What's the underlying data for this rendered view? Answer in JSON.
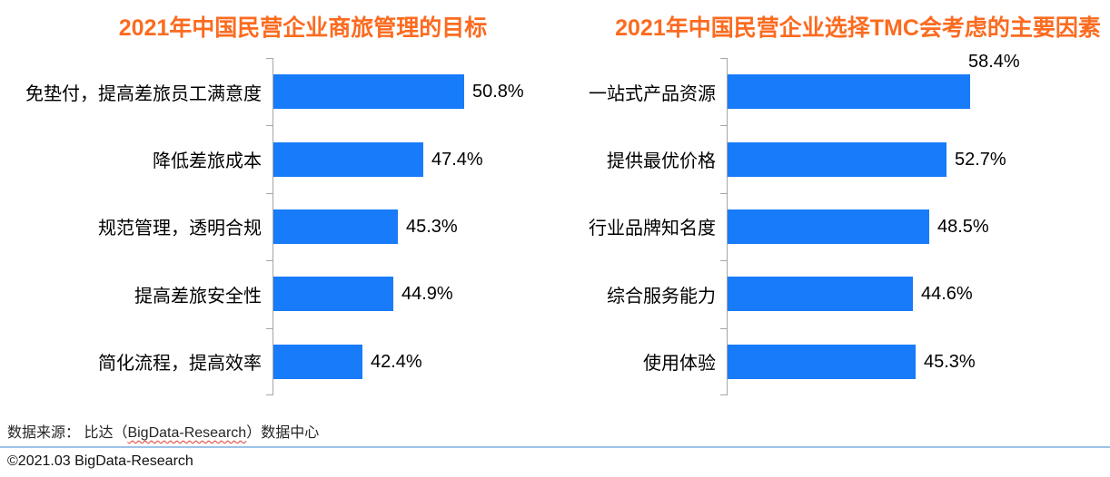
{
  "chart_data": [
    {
      "type": "bar",
      "orientation": "horizontal",
      "title": "2021年中国民营企业商旅管理的目标",
      "categories": [
        "免垫付，提高差旅员工满意度",
        "降低差旅成本",
        "规范管理，透明合规",
        "提高差旅安全性",
        "简化流程，提高效率"
      ],
      "values": [
        50.8,
        47.4,
        45.3,
        44.9,
        42.4
      ],
      "value_labels": [
        "50.8%",
        "47.4%",
        "45.3%",
        "44.9%",
        "42.4%"
      ],
      "xlabel": "",
      "ylabel": "",
      "xlim": [
        35,
        55
      ],
      "grid": false,
      "legend": false,
      "bar_color": "#177BFA"
    },
    {
      "type": "bar",
      "orientation": "horizontal",
      "title": "2021年中国民营企业选择TMC会考虑的主要因素",
      "categories": [
        "一站式产品资源",
        "提供最优价格",
        "行业品牌知名度",
        "综合服务能力",
        "使用体验"
      ],
      "values": [
        58.4,
        52.7,
        48.5,
        44.6,
        45.3
      ],
      "value_labels": [
        "58.4%",
        "52.7%",
        "48.5%",
        "44.6%",
        "45.3%"
      ],
      "xlabel": "",
      "ylabel": "",
      "xlim": [
        0,
        65
      ],
      "grid": false,
      "legend": false,
      "bar_color": "#177BFA"
    }
  ],
  "source_note": {
    "prefix": "数据来源： 比达（",
    "underlined": "BigData-Research",
    "suffix": "）数据中心",
    "full": "数据来源： 比达（BigData-Research）数据中心"
  },
  "footer": {
    "copyright": "©2021.03 BigData-Research"
  },
  "colors": {
    "bar": "#177BFA",
    "title": "#FB6B20",
    "axis": "#A6A6A6",
    "separator": "#9CC3E9",
    "squiggle": "#E0382E"
  }
}
